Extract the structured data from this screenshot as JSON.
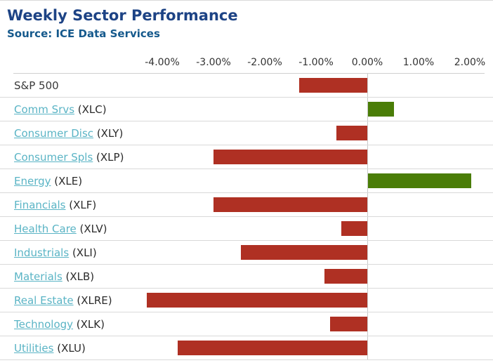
{
  "header": {
    "title": "Weekly Sector Performance",
    "source": "Source: ICE Data Services"
  },
  "chart_data": {
    "type": "bar",
    "orientation": "horizontal",
    "title": "Weekly Sector Performance",
    "subtitle": "Source: ICE Data Services",
    "xlabel": "",
    "ylabel": "",
    "axis": {
      "tick_labels": [
        "-4.00%",
        "-3.00%",
        "-2.00%",
        "-1.00%",
        "0.00%",
        "1.00%",
        "2.00%"
      ],
      "tick_values": [
        -4,
        -3,
        -2,
        -1,
        0,
        1,
        2
      ],
      "xlim": [
        -4.5,
        2.3
      ],
      "grid": "zero-line-and-row-separators",
      "tick_position": "top"
    },
    "categories": [
      "S&P 500",
      "Comm Srvs",
      "Consumer Disc",
      "Consumer Spls",
      "Energy",
      "Financials",
      "Health Care",
      "Industrials",
      "Materials",
      "Real Estate",
      "Technology",
      "Utilities"
    ],
    "tickers": [
      "",
      "(XLC)",
      "(XLY)",
      "(XLP)",
      "(XLE)",
      "(XLF)",
      "(XLV)",
      "(XLI)",
      "(XLB)",
      "(XLRE)",
      "(XLK)",
      "(XLU)"
    ],
    "values": [
      -1.33,
      0.51,
      -0.6,
      -3.0,
      2.02,
      -3.0,
      -0.51,
      -2.46,
      -0.83,
      -4.3,
      -0.72,
      -3.7
    ],
    "is_link": [
      false,
      true,
      true,
      true,
      true,
      true,
      true,
      true,
      true,
      true,
      true,
      true
    ],
    "colors": {
      "negative": "#af3023",
      "positive": "#4a7d07",
      "link": "#5ab4c5",
      "title": "#1d4385",
      "subtitle": "#15598c"
    }
  }
}
